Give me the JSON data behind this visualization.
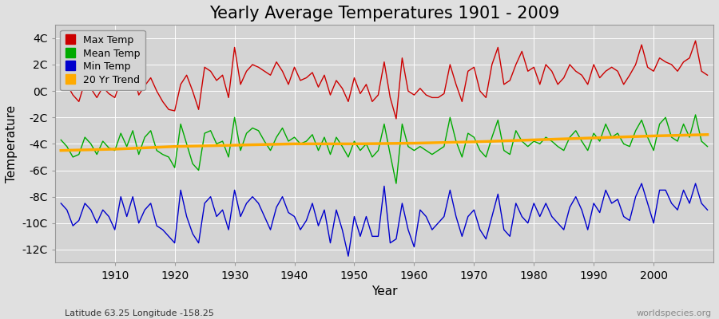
{
  "title": "Yearly Average Temperatures 1901 - 2009",
  "xlabel": "Year",
  "ylabel": "Temperature",
  "subtitle_left": "Latitude 63.25 Longitude -158.25",
  "subtitle_right": "worldspecies.org",
  "years": [
    1901,
    1902,
    1903,
    1904,
    1905,
    1906,
    1907,
    1908,
    1909,
    1910,
    1911,
    1912,
    1913,
    1914,
    1915,
    1916,
    1917,
    1918,
    1919,
    1920,
    1921,
    1922,
    1923,
    1924,
    1925,
    1926,
    1927,
    1928,
    1929,
    1930,
    1931,
    1932,
    1933,
    1934,
    1935,
    1936,
    1937,
    1938,
    1939,
    1940,
    1941,
    1942,
    1943,
    1944,
    1945,
    1946,
    1947,
    1948,
    1949,
    1950,
    1951,
    1952,
    1953,
    1954,
    1955,
    1956,
    1957,
    1958,
    1959,
    1960,
    1961,
    1962,
    1963,
    1964,
    1965,
    1966,
    1967,
    1968,
    1969,
    1970,
    1971,
    1972,
    1973,
    1974,
    1975,
    1976,
    1977,
    1978,
    1979,
    1980,
    1981,
    1982,
    1983,
    1984,
    1985,
    1986,
    1987,
    1988,
    1989,
    1990,
    1991,
    1992,
    1993,
    1994,
    1995,
    1996,
    1997,
    1998,
    1999,
    2000,
    2001,
    2002,
    2003,
    2004,
    2005,
    2006,
    2007,
    2008,
    2009
  ],
  "max_temp": [
    1.1,
    0.5,
    -0.3,
    -0.8,
    0.7,
    0.2,
    -0.5,
    0.3,
    -0.2,
    -0.5,
    0.8,
    0.2,
    1.5,
    -0.3,
    0.4,
    1.0,
    0.0,
    -0.8,
    -1.4,
    -1.5,
    0.5,
    1.2,
    0.0,
    -1.4,
    1.8,
    1.5,
    0.8,
    1.2,
    -0.5,
    3.3,
    0.5,
    1.5,
    2.0,
    1.8,
    1.5,
    1.2,
    2.2,
    1.5,
    0.5,
    1.8,
    0.8,
    1.0,
    1.4,
    0.3,
    1.2,
    -0.3,
    0.8,
    0.2,
    -0.8,
    1.0,
    -0.2,
    0.5,
    -0.8,
    -0.3,
    2.2,
    -0.5,
    -2.1,
    2.5,
    0.0,
    -0.3,
    0.2,
    -0.3,
    -0.5,
    -0.5,
    -0.2,
    2.0,
    0.5,
    -0.8,
    1.5,
    1.8,
    0.0,
    -0.5,
    2.0,
    3.3,
    0.5,
    0.8,
    2.0,
    3.0,
    1.5,
    1.8,
    0.5,
    2.0,
    1.5,
    0.5,
    1.0,
    2.0,
    1.5,
    1.2,
    0.5,
    2.0,
    1.0,
    1.5,
    1.8,
    1.5,
    0.5,
    1.2,
    2.0,
    3.5,
    1.8,
    1.5,
    2.5,
    2.2,
    2.0,
    1.5,
    2.2,
    2.5,
    3.8,
    1.5,
    1.2
  ],
  "mean_temp": [
    -3.7,
    -4.2,
    -5.0,
    -4.8,
    -3.5,
    -4.0,
    -4.8,
    -3.8,
    -4.3,
    -4.5,
    -3.2,
    -4.2,
    -3.0,
    -4.8,
    -3.5,
    -3.0,
    -4.5,
    -4.8,
    -5.0,
    -5.8,
    -2.5,
    -4.0,
    -5.5,
    -6.0,
    -3.2,
    -3.0,
    -4.0,
    -3.8,
    -5.0,
    -2.0,
    -4.5,
    -3.2,
    -2.8,
    -3.0,
    -3.8,
    -4.5,
    -3.5,
    -2.8,
    -3.8,
    -3.5,
    -4.0,
    -3.8,
    -3.3,
    -4.5,
    -3.5,
    -4.8,
    -3.5,
    -4.2,
    -5.0,
    -3.8,
    -4.5,
    -4.0,
    -5.0,
    -4.5,
    -2.5,
    -4.8,
    -7.0,
    -2.5,
    -4.2,
    -4.5,
    -4.2,
    -4.5,
    -4.8,
    -4.5,
    -4.2,
    -2.0,
    -3.8,
    -5.0,
    -3.2,
    -3.5,
    -4.5,
    -5.0,
    -3.5,
    -2.2,
    -4.5,
    -4.8,
    -3.0,
    -3.8,
    -4.2,
    -3.8,
    -4.0,
    -3.5,
    -3.8,
    -4.2,
    -4.5,
    -3.5,
    -3.0,
    -3.8,
    -4.5,
    -3.2,
    -3.8,
    -2.5,
    -3.5,
    -3.2,
    -4.0,
    -4.2,
    -3.0,
    -2.2,
    -3.5,
    -4.5,
    -2.5,
    -2.0,
    -3.5,
    -3.8,
    -2.5,
    -3.5,
    -1.8,
    -3.8,
    -4.2
  ],
  "min_temp": [
    -8.5,
    -9.0,
    -10.2,
    -9.8,
    -8.5,
    -9.0,
    -10.0,
    -9.0,
    -9.5,
    -10.5,
    -8.0,
    -9.5,
    -8.0,
    -10.0,
    -9.0,
    -8.5,
    -10.2,
    -10.5,
    -11.0,
    -11.5,
    -7.5,
    -9.5,
    -10.8,
    -11.5,
    -8.5,
    -8.0,
    -9.5,
    -9.0,
    -10.5,
    -7.5,
    -9.5,
    -8.5,
    -8.0,
    -8.5,
    -9.5,
    -10.5,
    -8.8,
    -8.0,
    -9.2,
    -9.5,
    -10.5,
    -9.8,
    -8.5,
    -10.2,
    -9.0,
    -11.5,
    -9.0,
    -10.5,
    -12.5,
    -9.5,
    -11.0,
    -9.5,
    -11.0,
    -11.0,
    -7.2,
    -11.5,
    -11.2,
    -8.5,
    -10.5,
    -11.8,
    -9.0,
    -9.5,
    -10.5,
    -10.0,
    -9.5,
    -7.5,
    -9.5,
    -11.0,
    -9.5,
    -9.0,
    -10.5,
    -11.2,
    -9.5,
    -7.8,
    -10.5,
    -11.0,
    -8.5,
    -9.5,
    -10.0,
    -8.5,
    -9.5,
    -8.5,
    -9.5,
    -10.0,
    -10.5,
    -8.8,
    -8.0,
    -9.0,
    -10.5,
    -8.5,
    -9.2,
    -7.5,
    -8.5,
    -8.2,
    -9.5,
    -9.8,
    -8.0,
    -7.0,
    -8.5,
    -10.0,
    -7.5,
    -7.5,
    -8.5,
    -9.0,
    -7.5,
    -8.5,
    -7.0,
    -8.5,
    -9.0
  ],
  "trend_years": [
    1901,
    1910,
    1920,
    1930,
    1940,
    1950,
    1960,
    1970,
    1980,
    1990,
    2000,
    2009
  ],
  "trend_vals": [
    -4.5,
    -4.4,
    -4.2,
    -4.1,
    -4.0,
    -4.0,
    -3.95,
    -3.85,
    -3.7,
    -3.55,
    -3.4,
    -3.3
  ],
  "max_color": "#cc0000",
  "mean_color": "#00aa00",
  "min_color": "#0000cc",
  "trend_color": "#ffaa00",
  "bg_color": "#e0e0e0",
  "plot_bg_color": "#d4d4d4",
  "grid_color": "#ffffff",
  "ylim": [
    -13,
    5
  ],
  "yticks": [
    -12,
    -10,
    -8,
    -6,
    -4,
    -2,
    0,
    2,
    4
  ],
  "ytick_labels": [
    "-12C",
    "-10C",
    "-8C",
    "-6C",
    "-4C",
    "-2C",
    "0C",
    "2C",
    "4C"
  ],
  "xticks": [
    1910,
    1920,
    1930,
    1940,
    1950,
    1960,
    1970,
    1980,
    1990,
    2000
  ],
  "title_fontsize": 15,
  "axis_fontsize": 10,
  "legend_fontsize": 9
}
